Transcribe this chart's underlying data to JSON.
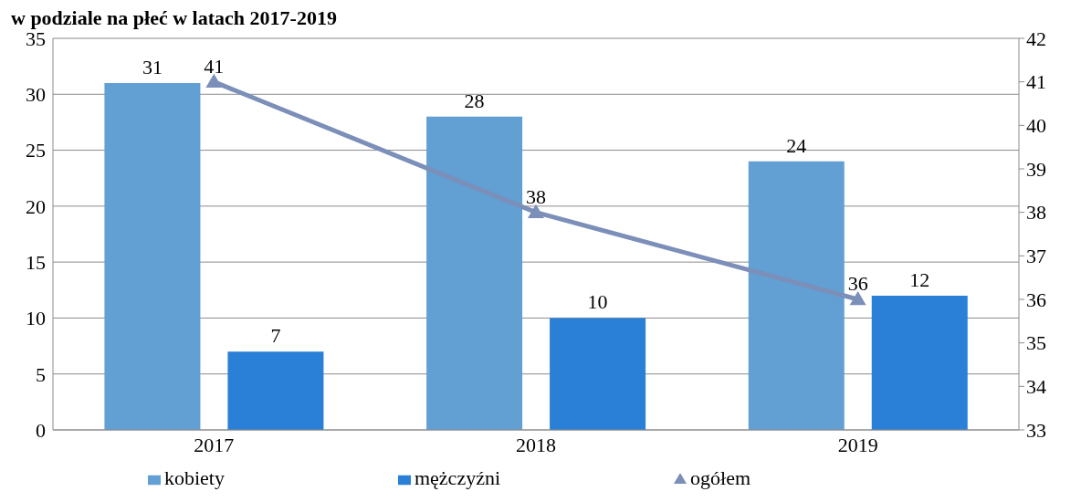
{
  "chart_data": {
    "type": "bar",
    "title": "w podziale na płeć w latach 2017-2019",
    "categories": [
      "2017",
      "2018",
      "2019"
    ],
    "series": [
      {
        "name": "kobiety",
        "color": "#629fd3",
        "values": [
          31,
          28,
          24
        ]
      },
      {
        "name": "mężczyźni",
        "color": "#2a7fd6",
        "values": [
          7,
          10,
          12
        ]
      },
      {
        "name": "ogółem",
        "type": "line",
        "axis": "y2",
        "color": "#7b8fb9",
        "values": [
          41,
          38,
          36
        ],
        "marker": "triangle"
      }
    ],
    "ylim": [
      0,
      35
    ],
    "yticks": [
      0,
      5,
      10,
      15,
      20,
      25,
      30,
      35
    ],
    "y2lim": [
      33,
      42
    ],
    "y2ticks": [
      33,
      34,
      35,
      36,
      37,
      38,
      39,
      40,
      41,
      42
    ],
    "grid": "y",
    "legend": "bottom",
    "data_labels": true
  }
}
